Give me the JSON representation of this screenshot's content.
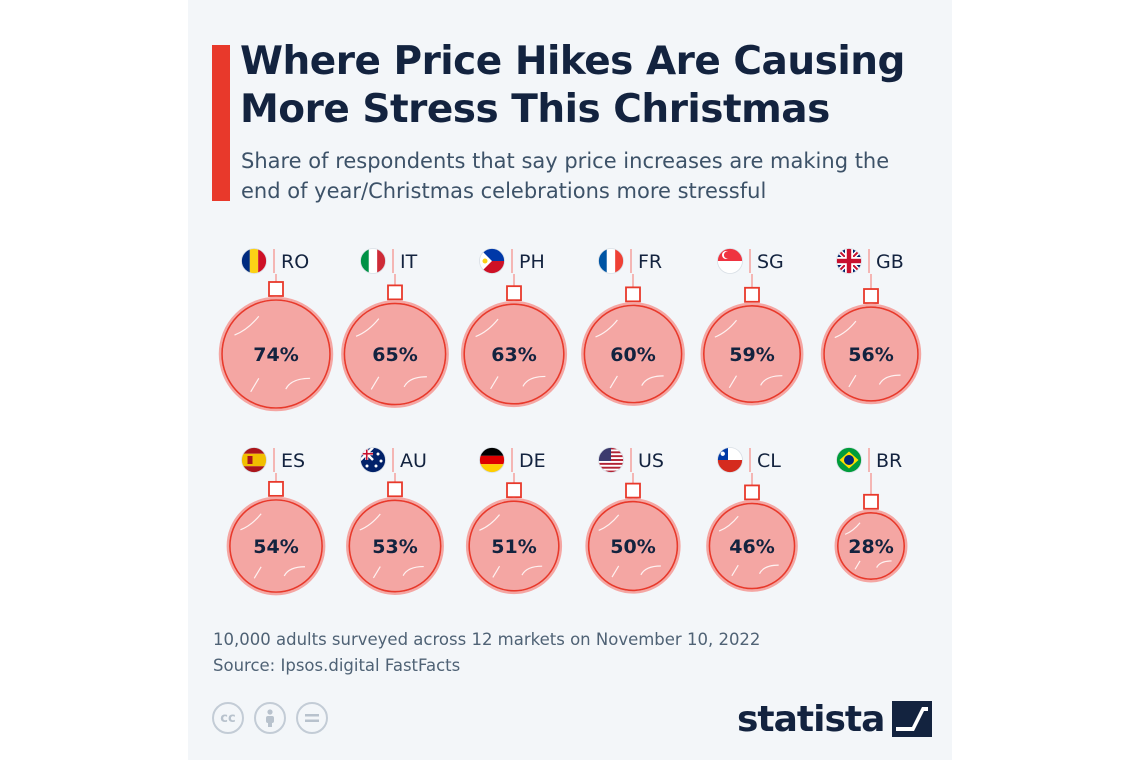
{
  "title": "Where Price Hikes Are Causing More Stress This Christmas",
  "subtitle": "Share of respondents that say price increases are making the end of year/Christmas celebrations more stressful",
  "chart_data": {
    "type": "bar",
    "title": "Where Price Hikes Are Causing More Stress This Christmas",
    "subtitle": "Share of respondents that say price increases are making the end of year/Christmas celebrations more stressful",
    "unit": "%",
    "categories": [
      "RO",
      "IT",
      "PH",
      "FR",
      "SG",
      "GB",
      "ES",
      "AU",
      "DE",
      "US",
      "CL",
      "BR"
    ],
    "values": [
      74,
      65,
      63,
      60,
      59,
      56,
      54,
      53,
      51,
      50,
      46,
      28
    ],
    "value_labels": [
      "74%",
      "65%",
      "63%",
      "60%",
      "59%",
      "56%",
      "54%",
      "53%",
      "51%",
      "50%",
      "46%",
      "28%"
    ],
    "flags": [
      "flag-romania-icon",
      "flag-italy-icon",
      "flag-philippines-icon",
      "flag-france-icon",
      "flag-singapore-icon",
      "flag-uk-icon",
      "flag-spain-icon",
      "flag-australia-icon",
      "flag-germany-icon",
      "flag-usa-icon",
      "flag-chile-icon",
      "flag-brazil-icon"
    ],
    "ornament_color": "#f4a6a3",
    "ornament_stroke": "#e8392b"
  },
  "footnote": {
    "line1": "10,000 adults surveyed across 12 markets on November 10, 2022",
    "line2": "Source: Ipsos.digital FastFacts"
  },
  "license_icons": [
    "cc-icon",
    "attribution-icon",
    "no-derivatives-icon"
  ],
  "brand": {
    "name": "statista"
  },
  "colors": {
    "accent": "#e8392b",
    "title": "#13233f",
    "background": "#f3f6f9"
  }
}
